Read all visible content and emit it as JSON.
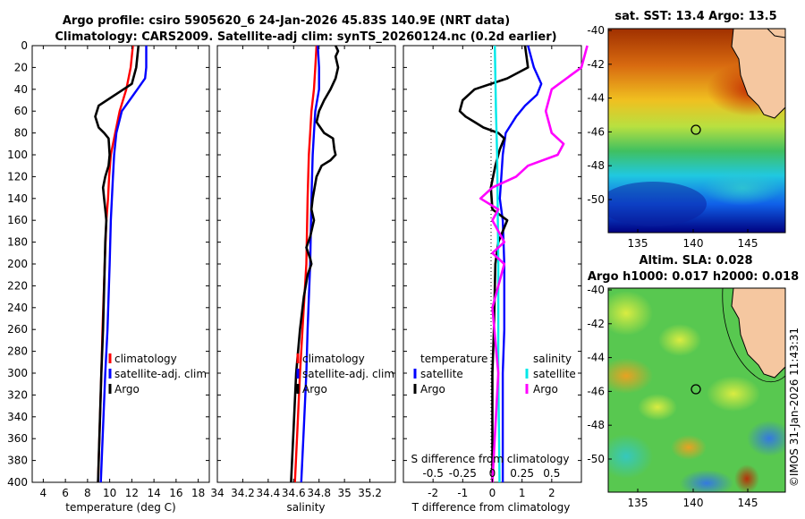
{
  "header": {
    "title_line1": "Argo profile: csiro 5905620_6 24-Jan-2026 45.83S 140.9E (NRT data)",
    "title_line2": "Climatology: CARS2009. Satellite-adj clim: synTS_20260124.nc (0.2d earlier)"
  },
  "depth_ticks": [
    "0",
    "20",
    "40",
    "60",
    "80",
    "100",
    "120",
    "140",
    "160",
    "180",
    "200",
    "220",
    "240",
    "260",
    "280",
    "300",
    "320",
    "340",
    "360",
    "380",
    "400"
  ],
  "chart_data": [
    {
      "type": "line",
      "name": "temperature",
      "xlabel": "temperature (deg C)",
      "ylabel": "depth",
      "xlim": [
        3,
        19
      ],
      "ylim": [
        400,
        0
      ],
      "x_ticks": [
        "4",
        "6",
        "8",
        "10",
        "12",
        "14",
        "16",
        "18"
      ],
      "x_tick_values": [
        4,
        6,
        8,
        10,
        12,
        14,
        16,
        18
      ],
      "legend": [
        "climatology",
        "satellite-adj. clim",
        "Argo"
      ],
      "series": [
        {
          "name": "climatology",
          "color": "#ff0000",
          "depth": [
            0,
            20,
            40,
            60,
            80,
            100,
            120,
            140,
            160,
            200,
            260,
            300,
            350,
            400
          ],
          "values": [
            12.1,
            11.9,
            11.5,
            10.9,
            10.5,
            10.1,
            9.95,
            9.85,
            9.7,
            9.55,
            9.35,
            9.25,
            9.1,
            8.95
          ]
        },
        {
          "name": "satellite-adj. clim",
          "color": "#0000ff",
          "depth": [
            0,
            20,
            30,
            40,
            50,
            60,
            80,
            100,
            120,
            140,
            160,
            200,
            260,
            300,
            350,
            400
          ],
          "values": [
            13.3,
            13.3,
            13.2,
            12.5,
            11.8,
            11.1,
            10.6,
            10.4,
            10.3,
            10.2,
            10.1,
            10.0,
            9.8,
            9.6,
            9.4,
            9.2
          ]
        },
        {
          "name": "Argo",
          "color": "#000000",
          "depth": [
            0,
            20,
            35,
            45,
            55,
            65,
            75,
            80,
            85,
            100,
            110,
            120,
            130,
            140,
            150,
            160,
            180,
            200,
            260,
            300,
            400
          ],
          "values": [
            12.6,
            12.4,
            12.0,
            10.5,
            9.0,
            8.7,
            9.0,
            9.5,
            9.9,
            10.0,
            9.9,
            9.6,
            9.4,
            9.5,
            9.6,
            9.7,
            9.6,
            9.55,
            9.4,
            9.25,
            8.95
          ]
        }
      ]
    },
    {
      "type": "line",
      "name": "salinity",
      "xlabel": "salinity",
      "ylabel": "depth",
      "xlim": [
        34.0,
        35.4
      ],
      "ylim": [
        400,
        0
      ],
      "x_ticks": [
        "34",
        "34.2",
        "34.4",
        "34.6",
        "34.8",
        "35",
        "35.2"
      ],
      "x_tick_values": [
        34.0,
        34.2,
        34.4,
        34.6,
        34.8,
        35.0,
        35.2
      ],
      "legend": [
        "climatology",
        "satellite-adj. clim",
        "Argo"
      ],
      "series": [
        {
          "name": "climatology",
          "color": "#ff0000",
          "depth": [
            0,
            20,
            40,
            60,
            80,
            100,
            140,
            200,
            260,
            300,
            350,
            400
          ],
          "values": [
            34.78,
            34.77,
            34.76,
            34.74,
            34.73,
            34.72,
            34.71,
            34.7,
            34.67,
            34.65,
            34.63,
            34.61
          ]
        },
        {
          "name": "satellite-adj. clim",
          "color": "#0000ff",
          "depth": [
            0,
            20,
            40,
            60,
            80,
            100,
            140,
            200,
            260,
            300,
            350,
            400
          ],
          "values": [
            34.79,
            34.8,
            34.8,
            34.77,
            34.76,
            34.75,
            34.74,
            34.73,
            34.71,
            34.7,
            34.68,
            34.66
          ]
        },
        {
          "name": "Argo",
          "color": "#000000",
          "depth": [
            0,
            5,
            10,
            20,
            30,
            40,
            50,
            60,
            70,
            80,
            85,
            95,
            100,
            105,
            110,
            120,
            140,
            150,
            160,
            175,
            185,
            195,
            200,
            210,
            230,
            260,
            300,
            350,
            400
          ],
          "values": [
            34.93,
            34.95,
            34.93,
            34.95,
            34.93,
            34.89,
            34.84,
            34.8,
            34.78,
            34.84,
            34.91,
            34.92,
            34.93,
            34.89,
            34.82,
            34.78,
            34.75,
            34.74,
            34.76,
            34.73,
            34.7,
            34.73,
            34.74,
            34.71,
            34.68,
            34.65,
            34.62,
            34.6,
            34.58
          ]
        }
      ]
    },
    {
      "type": "line",
      "name": "difference",
      "xlabel": "T difference from climatology",
      "xlabel_top": "S difference from climatology",
      "ylabel": "depth",
      "xlim": [
        -3,
        3
      ],
      "ylim": [
        400,
        0
      ],
      "x_ticks": [
        "-2",
        "-1",
        "0",
        "1",
        "2"
      ],
      "x_tick_values": [
        -2,
        -1,
        0,
        1,
        2
      ],
      "s_ticks": [
        "-0.5",
        "-0.25",
        "0",
        "0.25",
        "0.5"
      ],
      "s_tick_values": [
        -0.5,
        -0.25,
        0,
        0.25,
        0.5
      ],
      "legend_temperature": [
        "temperature",
        "satellite",
        "Argo"
      ],
      "legend_salinity": [
        "salinity",
        "satellite",
        "Argo"
      ],
      "series": [
        {
          "name": "T satellite",
          "color": "#0000ff",
          "depth": [
            0,
            20,
            35,
            45,
            55,
            65,
            80,
            100,
            120,
            140,
            160,
            200,
            260,
            300,
            400
          ],
          "values": [
            1.2,
            1.4,
            1.65,
            1.5,
            1.1,
            0.8,
            0.45,
            0.35,
            0.3,
            0.25,
            0.35,
            0.4,
            0.4,
            0.35,
            0.35
          ]
        },
        {
          "name": "T Argo",
          "color": "#000000",
          "depth": [
            0,
            20,
            30,
            40,
            50,
            60,
            65,
            70,
            75,
            80,
            85,
            95,
            110,
            130,
            150,
            160,
            180,
            200,
            260,
            300,
            400
          ],
          "values": [
            1.1,
            1.2,
            0.5,
            -0.6,
            -1.0,
            -1.1,
            -0.9,
            -0.6,
            -0.3,
            0.2,
            0.4,
            0.25,
            0.1,
            -0.05,
            0.0,
            0.5,
            0.2,
            0.1,
            0.05,
            0.0,
            0.0
          ]
        },
        {
          "name": "S satellite",
          "color": "#00e8e8",
          "depth": [
            0,
            60,
            100,
            200,
            300,
            400
          ],
          "values": [
            0.02,
            0.03,
            0.04,
            0.05,
            0.05,
            0.06
          ]
        },
        {
          "name": "S Argo",
          "color": "#ff00ff",
          "depth": [
            0,
            20,
            40,
            60,
            80,
            90,
            100,
            110,
            120,
            130,
            140,
            150,
            160,
            180,
            190,
            200,
            240,
            300,
            400
          ],
          "values": [
            0.8,
            0.75,
            0.5,
            0.45,
            0.5,
            0.6,
            0.55,
            0.3,
            0.2,
            0.0,
            -0.1,
            0.05,
            0.0,
            0.1,
            0.0,
            0.1,
            0.0,
            0.05,
            0.0
          ]
        }
      ]
    }
  ],
  "maps": {
    "sst": {
      "title": "sat. SST: 13.4 Argo: 13.5",
      "lat_ticks": [
        "-40",
        "-42",
        "-44",
        "-46",
        "-48",
        "-50"
      ],
      "lon_ticks": [
        "135",
        "140",
        "145"
      ]
    },
    "sla": {
      "title_line1": "Altim. SLA: 0.028",
      "title_line2": "Argo h1000: 0.017 h2000: 0.018",
      "lat_ticks": [
        "-40",
        "-42",
        "-44",
        "-46",
        "-48",
        "-50"
      ],
      "lon_ticks": [
        "135",
        "140",
        "145"
      ]
    }
  },
  "credit": "©IMOS 31-Jan-2026 11:43:31"
}
